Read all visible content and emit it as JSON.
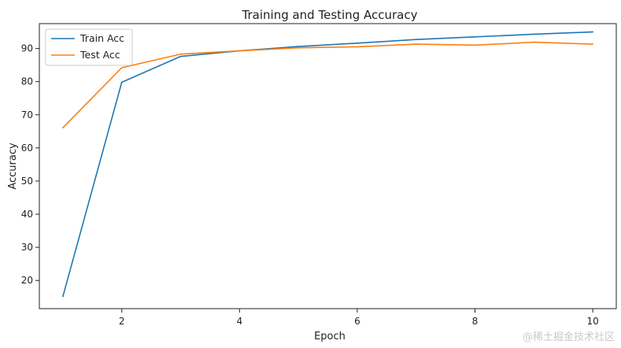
{
  "chart_data": {
    "type": "line",
    "title": "Training and Testing Accuracy",
    "xlabel": "Epoch",
    "ylabel": "Accuracy",
    "x": [
      1,
      2,
      3,
      4,
      5,
      6,
      7,
      8,
      9,
      10
    ],
    "xlim": [
      0.6,
      10.4
    ],
    "ylim": [
      11.5,
      97.5
    ],
    "xticks": [
      2,
      4,
      6,
      8,
      10
    ],
    "yticks": [
      20,
      30,
      40,
      50,
      60,
      70,
      80,
      90
    ],
    "grid": false,
    "legend_position": "top-left",
    "series": [
      {
        "name": "Train Acc",
        "color": "#1f77b4",
        "values": [
          15.2,
          79.8,
          87.6,
          89.3,
          90.6,
          91.6,
          92.7,
          93.5,
          94.3,
          95.0
        ]
      },
      {
        "name": "Test Acc",
        "color": "#ff7f0e",
        "values": [
          66.1,
          84.2,
          88.3,
          89.3,
          90.2,
          90.5,
          91.3,
          91.0,
          91.9,
          91.3
        ]
      }
    ]
  },
  "watermark": "@稀土掘金技术社区"
}
